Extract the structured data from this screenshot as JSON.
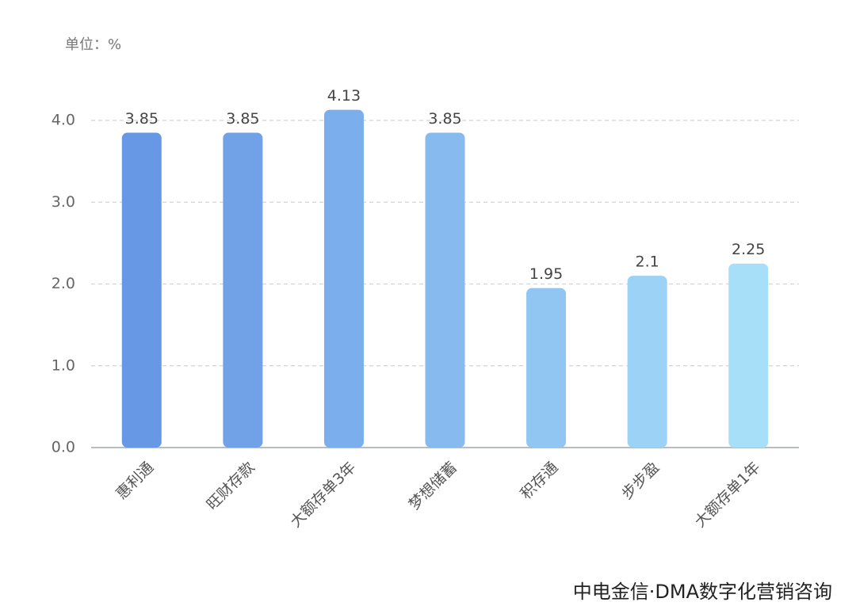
{
  "chart_data": {
    "type": "bar",
    "unit_label": "单位：%",
    "source": "中电金信·DMA数字化营销咨询",
    "categories": [
      "惠利通",
      "旺财存款",
      "大额存单3年",
      "梦想储蓄",
      "积存通",
      "步步盈",
      "大额存单1年"
    ],
    "values": [
      3.85,
      3.85,
      4.13,
      3.85,
      1.95,
      2.1,
      2.25
    ],
    "colors": [
      "#6698e6",
      "#71a2e8",
      "#7aaeec",
      "#87bbf0",
      "#91c6f3",
      "#9bd2f6",
      "#a7dff9"
    ],
    "ylim": [
      0,
      4.0
    ],
    "yticks": [
      {
        "value": 0,
        "label": "0.0"
      },
      {
        "value": 1,
        "label": "1.0"
      },
      {
        "value": 2,
        "label": "2.0"
      },
      {
        "value": 3,
        "label": "3.0"
      },
      {
        "value": 4,
        "label": "4.0"
      }
    ],
    "grid": true
  }
}
